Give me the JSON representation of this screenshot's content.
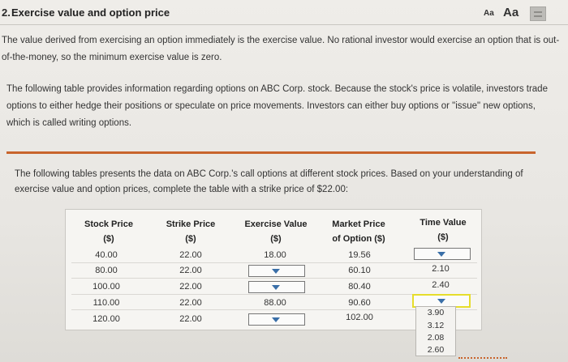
{
  "header": {
    "number": "2.",
    "title": "Exercise value and option price",
    "font_small": "Aa",
    "font_large": "Aa",
    "doc_icon": "document-icon"
  },
  "paragraphs": {
    "p1": "The value derived from exercising an option immediately is the exercise value. No rational investor would exercise an option that is out-of-the-money, so the minimum exercise value is zero.",
    "p2": "The following table provides information regarding options on ABC Corp. stock. Because the stock's price is volatile, investors trade options to either hedge their positions or speculate on price movements. Investors can either buy options or \"issue\" new options, which is called writing options.",
    "p3": "The following tables presents the data on ABC Corp.'s call options at different stock prices. Based on your understanding of exercise value and option prices, complete the table with a strike price of $22.00:"
  },
  "table": {
    "headers": [
      {
        "line1": "Stock Price",
        "line2": "($)"
      },
      {
        "line1": "Strike Price",
        "line2": "($)"
      },
      {
        "line1": "Exercise Value",
        "line2": "($)"
      },
      {
        "line1": "Market Price",
        "line2": "of Option ($)"
      },
      {
        "line1": "Time Value",
        "line2": "($)"
      }
    ],
    "rows": [
      {
        "stock": "40.00",
        "strike": "22.00",
        "exercise": "18.00",
        "market": "19.56",
        "time": ""
      },
      {
        "stock": "80.00",
        "strike": "22.00",
        "exercise": "",
        "market": "60.10",
        "time": "2.10"
      },
      {
        "stock": "100.00",
        "strike": "22.00",
        "exercise": "",
        "market": "80.40",
        "time": "2.40"
      },
      {
        "stock": "110.00",
        "strike": "22.00",
        "exercise": "88.00",
        "market": "90.60",
        "time": ""
      },
      {
        "stock": "120.00",
        "strike": "22.00",
        "exercise": "",
        "market": "102.00",
        "time": ""
      }
    ],
    "time_value_options": [
      "3.90",
      "3.12",
      "2.08",
      "2.60"
    ]
  },
  "colors": {
    "accent_rule": "#c8642c",
    "dropdown_arrow": "#3a6fa8",
    "dropdown_focus": "#e6dd2c"
  }
}
